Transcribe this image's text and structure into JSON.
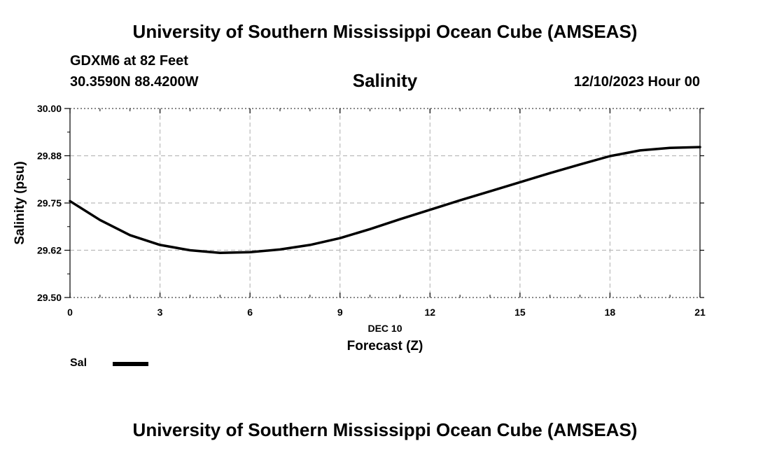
{
  "header": {
    "title": "University of Southern Mississippi Ocean Cube (AMSEAS)",
    "station": "GDXM6 at 82 Feet",
    "coords": "30.3590N  88.4200W",
    "parameter": "Salinity",
    "datetime": "12/10/2023 Hour 00"
  },
  "footer": {
    "title": "University of Southern Mississippi Ocean Cube (AMSEAS)"
  },
  "chart_data": {
    "type": "line",
    "title": "Salinity",
    "xlabel": "Forecast (Z)",
    "xsublabel": "DEC 10",
    "ylabel": "Salinity (psu)",
    "xlim": [
      0,
      21
    ],
    "ylim": [
      29.5,
      30.0
    ],
    "xticks": [
      0,
      3,
      6,
      9,
      12,
      15,
      18,
      21
    ],
    "xtick_labels": [
      "0",
      "3",
      "6",
      "9",
      "12",
      "15",
      "18",
      "21"
    ],
    "yticks": [
      29.5,
      29.625,
      29.75,
      29.875,
      30.0
    ],
    "ytick_labels": [
      "29.50",
      "29.62",
      "29.75",
      "29.88",
      "30.00"
    ],
    "grid": true,
    "legend": {
      "position": "bottom-left",
      "entries": [
        "Sal"
      ]
    },
    "series": [
      {
        "name": "Sal",
        "color": "#000000",
        "x": [
          0,
          1,
          2,
          3,
          4,
          5,
          6,
          7,
          8,
          9,
          10,
          11,
          12,
          13,
          14,
          15,
          16,
          17,
          18,
          19,
          20,
          21
        ],
        "values": [
          29.755,
          29.705,
          29.665,
          29.639,
          29.625,
          29.618,
          29.62,
          29.627,
          29.639,
          29.657,
          29.681,
          29.707,
          29.732,
          29.757,
          29.781,
          29.805,
          29.829,
          29.852,
          29.874,
          29.889,
          29.896,
          29.898
        ]
      }
    ]
  }
}
